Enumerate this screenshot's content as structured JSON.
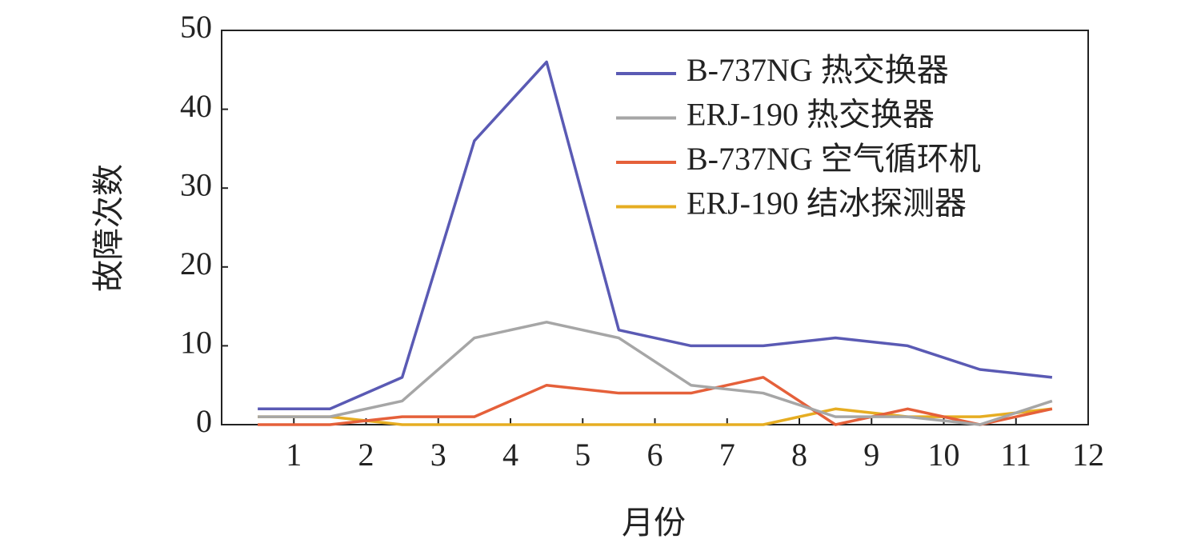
{
  "chart_data": {
    "type": "line",
    "x_label": "月份",
    "y_label": "故障次数",
    "x": [
      0.5,
      1.5,
      2.5,
      3.5,
      4.5,
      5.5,
      6.5,
      7.5,
      8.5,
      9.5,
      10.5,
      11.5
    ],
    "series": [
      {
        "name": "B-737NG 热交换器",
        "color": "#5a5ab4",
        "values": [
          2,
          2,
          6,
          36,
          46,
          12,
          10,
          10,
          11,
          10,
          7,
          6
        ]
      },
      {
        "name": "ERJ-190 热交换器",
        "color": "#a6a6a6",
        "values": [
          1,
          1,
          3,
          11,
          13,
          11,
          5,
          4,
          1,
          1,
          0,
          3
        ]
      },
      {
        "name": "B-737NG 空气循环机",
        "color": "#e5603a",
        "values": [
          0,
          0,
          1,
          1,
          5,
          4,
          4,
          6,
          0,
          2,
          0,
          2
        ]
      },
      {
        "name": "ERJ-190 结冰探测器",
        "color": "#e6ad22",
        "values": [
          1,
          1,
          0,
          0,
          0,
          0,
          0,
          0,
          2,
          1,
          1,
          2
        ]
      }
    ],
    "xlim": [
      0,
      12
    ],
    "xticks": [
      1,
      2,
      3,
      4,
      5,
      6,
      7,
      8,
      9,
      10,
      11,
      12
    ],
    "ylim": [
      0,
      50
    ],
    "yticks": [
      0,
      10,
      20,
      30,
      40,
      50
    ],
    "legend": "upper right"
  }
}
